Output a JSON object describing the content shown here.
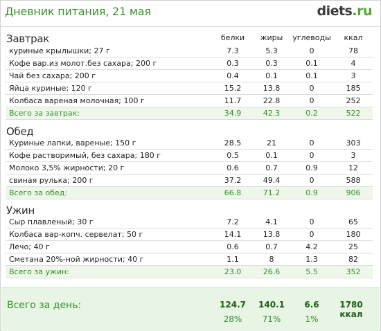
{
  "header": {
    "title": "Дневник питания, 21 мая",
    "logo_main": "diets",
    "logo_tld": ".ru"
  },
  "columns": [
    "белки",
    "жиры",
    "углеводы",
    "ккал"
  ],
  "meals": [
    {
      "title": "Завтрак",
      "items": [
        {
          "name": "куриные крылышки; 27 г",
          "values": [
            "7.3",
            "5.3",
            "0",
            "78"
          ]
        },
        {
          "name": "Кофе вар.из молот.без сахара; 200 г",
          "values": [
            "0.3",
            "0.3",
            "0.1",
            "4"
          ]
        },
        {
          "name": "Чай без сахара; 200 г",
          "values": [
            "0.4",
            "0.1",
            "0.1",
            "3"
          ]
        },
        {
          "name": "Яйца куриные; 120 г",
          "values": [
            "15.2",
            "13.8",
            "0",
            "185"
          ]
        },
        {
          "name": "Колбаса вареная молочная; 100 г",
          "values": [
            "11.7",
            "22.8",
            "0",
            "252"
          ]
        }
      ],
      "total": {
        "label": "Всего за завтрак:",
        "values": [
          "34.9",
          "42.3",
          "0.2",
          "522"
        ]
      }
    },
    {
      "title": "Обед",
      "items": [
        {
          "name": "Куриные лапки, вареные; 150 г",
          "values": [
            "28.5",
            "21",
            "0",
            "303"
          ]
        },
        {
          "name": "Кофе растворимый, без сахара; 180 г",
          "values": [
            "0.5",
            "0.1",
            "0",
            "3"
          ]
        },
        {
          "name": "Молоко 3,5% жирности; 20 г",
          "values": [
            "0.6",
            "0.7",
            "0.9",
            "12"
          ]
        },
        {
          "name": "свиная рулька; 200 г",
          "values": [
            "37.2",
            "49.4",
            "0",
            "588"
          ]
        }
      ],
      "total": {
        "label": "Всего за обед:",
        "values": [
          "66.8",
          "71.2",
          "0.9",
          "906"
        ]
      }
    },
    {
      "title": "Ужин",
      "items": [
        {
          "name": "Сыр плавленый; 30 г",
          "values": [
            "7.2",
            "4.1",
            "0",
            "65"
          ]
        },
        {
          "name": "Колбаса вар-копч. сервелат; 50 г",
          "values": [
            "14.1",
            "13.8",
            "0",
            "180"
          ]
        },
        {
          "name": "Лечо; 40 г",
          "values": [
            "0.6",
            "0.7",
            "4.2",
            "25"
          ]
        },
        {
          "name": "Сметана 20%-ной жирности; 40 г",
          "values": [
            "1.1",
            "8",
            "1.3",
            "82"
          ]
        }
      ],
      "total": {
        "label": "Всего за ужин:",
        "values": [
          "23.0",
          "26.6",
          "5.5",
          "352"
        ]
      }
    }
  ],
  "day_total": {
    "label": "Всего за день:",
    "values": [
      "124.7",
      "140.1",
      "6.6",
      "1780 ккал"
    ],
    "percents": [
      "28%",
      "71%",
      "1%"
    ]
  }
}
